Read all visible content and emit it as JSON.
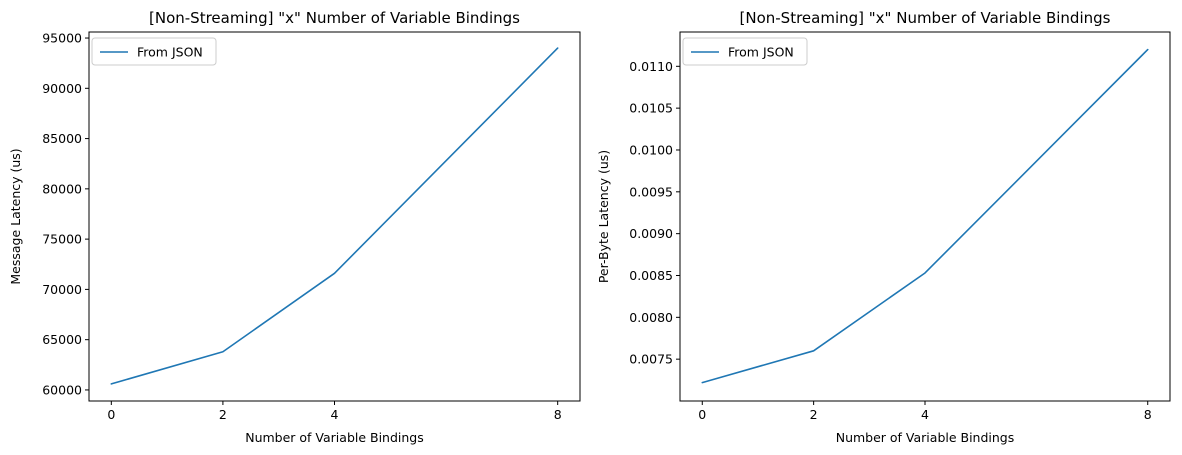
{
  "chart_data": [
    {
      "type": "line",
      "title": "[Non-Streaming] \"x\" Number of Variable Bindings",
      "xlabel": "Number of Variable Bindings",
      "ylabel": "Message Latency (us)",
      "x": [
        0,
        2,
        4,
        8
      ],
      "xticks": [
        0,
        2,
        4,
        8
      ],
      "xlim": [
        -0.4,
        8.4
      ],
      "yticks": [
        60000,
        65000,
        70000,
        75000,
        80000,
        85000,
        90000,
        95000
      ],
      "ylim": [
        58900,
        95600
      ],
      "decimals": 0,
      "legend_placement": "upper-left",
      "grid": false,
      "series": [
        {
          "name": "From JSON",
          "color": "#1f77b4",
          "values": [
            60600,
            63800,
            71600,
            94000
          ]
        }
      ]
    },
    {
      "type": "line",
      "title": "[Non-Streaming] \"x\" Number of Variable Bindings",
      "xlabel": "Number of Variable Bindings",
      "ylabel": "Per-Byte Latency (us)",
      "x": [
        0,
        2,
        4,
        8
      ],
      "xticks": [
        0,
        2,
        4,
        8
      ],
      "xlim": [
        -0.4,
        8.4
      ],
      "yticks": [
        0.0075,
        0.008,
        0.0085,
        0.009,
        0.0095,
        0.01,
        0.0105,
        0.011
      ],
      "ylim": [
        0.007,
        0.01141
      ],
      "decimals": 4,
      "legend_placement": "upper-left",
      "grid": false,
      "series": [
        {
          "name": "From JSON",
          "color": "#1f77b4",
          "values": [
            0.00722,
            0.0076,
            0.00853,
            0.0112
          ]
        }
      ]
    }
  ]
}
